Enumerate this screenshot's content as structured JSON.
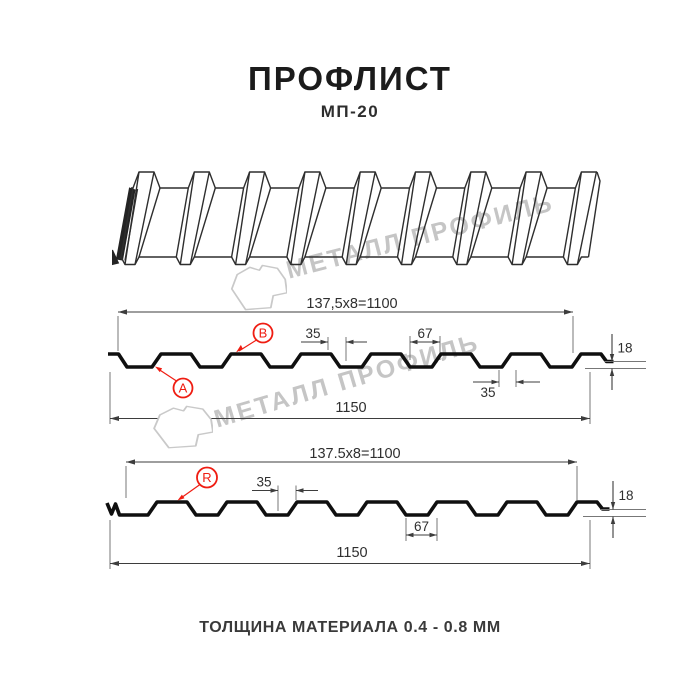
{
  "header": {
    "title": "ПРОФЛИСТ",
    "subtitle": "МП-20"
  },
  "footer": {
    "note": "ТОЛЩИНА МАТЕРИАЛА 0.4 - 0.8 ММ"
  },
  "watermark": {
    "brand": "МЕТАЛЛ ПРОФИЛЬ"
  },
  "colors": {
    "accent_red": "#ef1d12",
    "drawing_line": "#0f0f0f",
    "dim_line": "#3d3d3d",
    "watermark_gray": "#c5c5c5"
  },
  "drawing_top": {
    "dims": {
      "span": "137,5x8=1100",
      "total_width": "1150",
      "height": "18",
      "rib_top_width": "35",
      "valley_width": "67",
      "bottom_width": "35"
    },
    "markers": {
      "a": "A",
      "b": "B"
    }
  },
  "drawing_bottom": {
    "dims": {
      "span": "137.5x8=1100",
      "total_width": "1150",
      "height": "18",
      "rib_top_width": "35",
      "valley_width": "67"
    },
    "markers": {
      "r": "R"
    }
  }
}
